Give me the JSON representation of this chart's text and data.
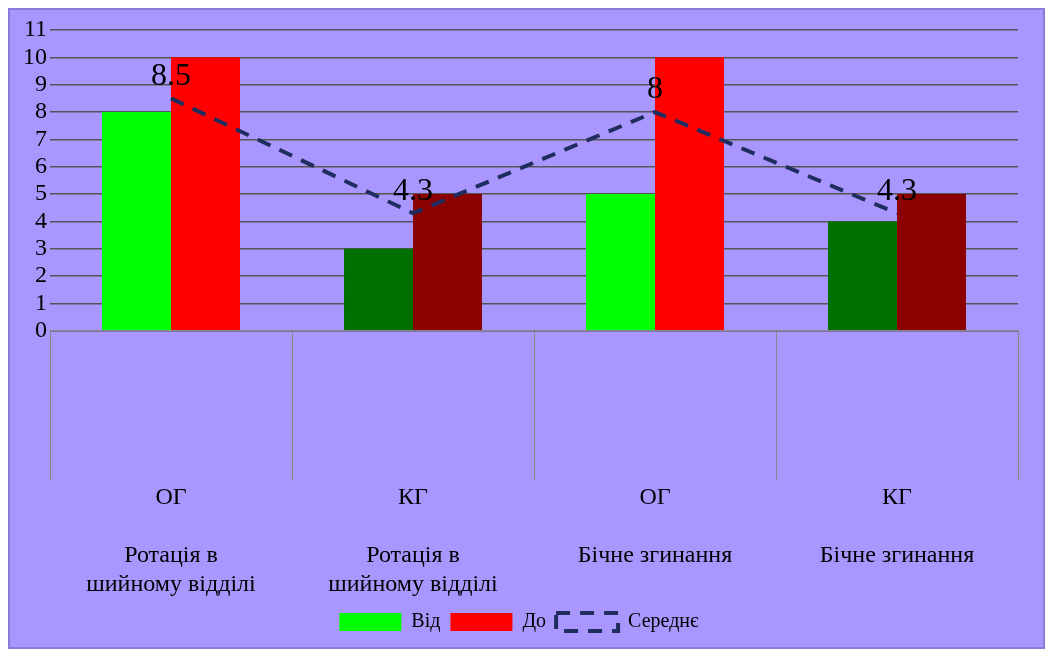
{
  "chart_data": {
    "type": "bar",
    "categories": [
      "ОГ\nРотація в шийному відділі",
      "КГ\nРотація в шийному відділі",
      "ОГ\nБічне згинання",
      "КГ\nБічне згинання"
    ],
    "series": [
      {
        "name": "Від",
        "color": "#00ff00",
        "colors": [
          "#00ff00",
          "#007000",
          "#00ff00",
          "#007000"
        ],
        "values": [
          8,
          3,
          5,
          4
        ]
      },
      {
        "name": "До",
        "color": "#ff0000",
        "colors": [
          "#ff0000",
          "#8b0000",
          "#ff0000",
          "#8b0000"
        ],
        "values": [
          10,
          5,
          10,
          5
        ]
      },
      {
        "name": "Середнє",
        "type": "line",
        "color": "#1f2d5e",
        "line_style": "dashed",
        "marker": "none",
        "values": [
          8.5,
          4.3,
          8,
          4.3
        ],
        "value_labels": [
          "8.5",
          "4.3",
          "8",
          "4.3"
        ]
      }
    ],
    "ylim": [
      0,
      11
    ],
    "yticks": [
      0,
      1,
      2,
      3,
      4,
      5,
      6,
      7,
      8,
      9,
      10,
      11
    ],
    "grid": "y",
    "legend": "bottom"
  }
}
